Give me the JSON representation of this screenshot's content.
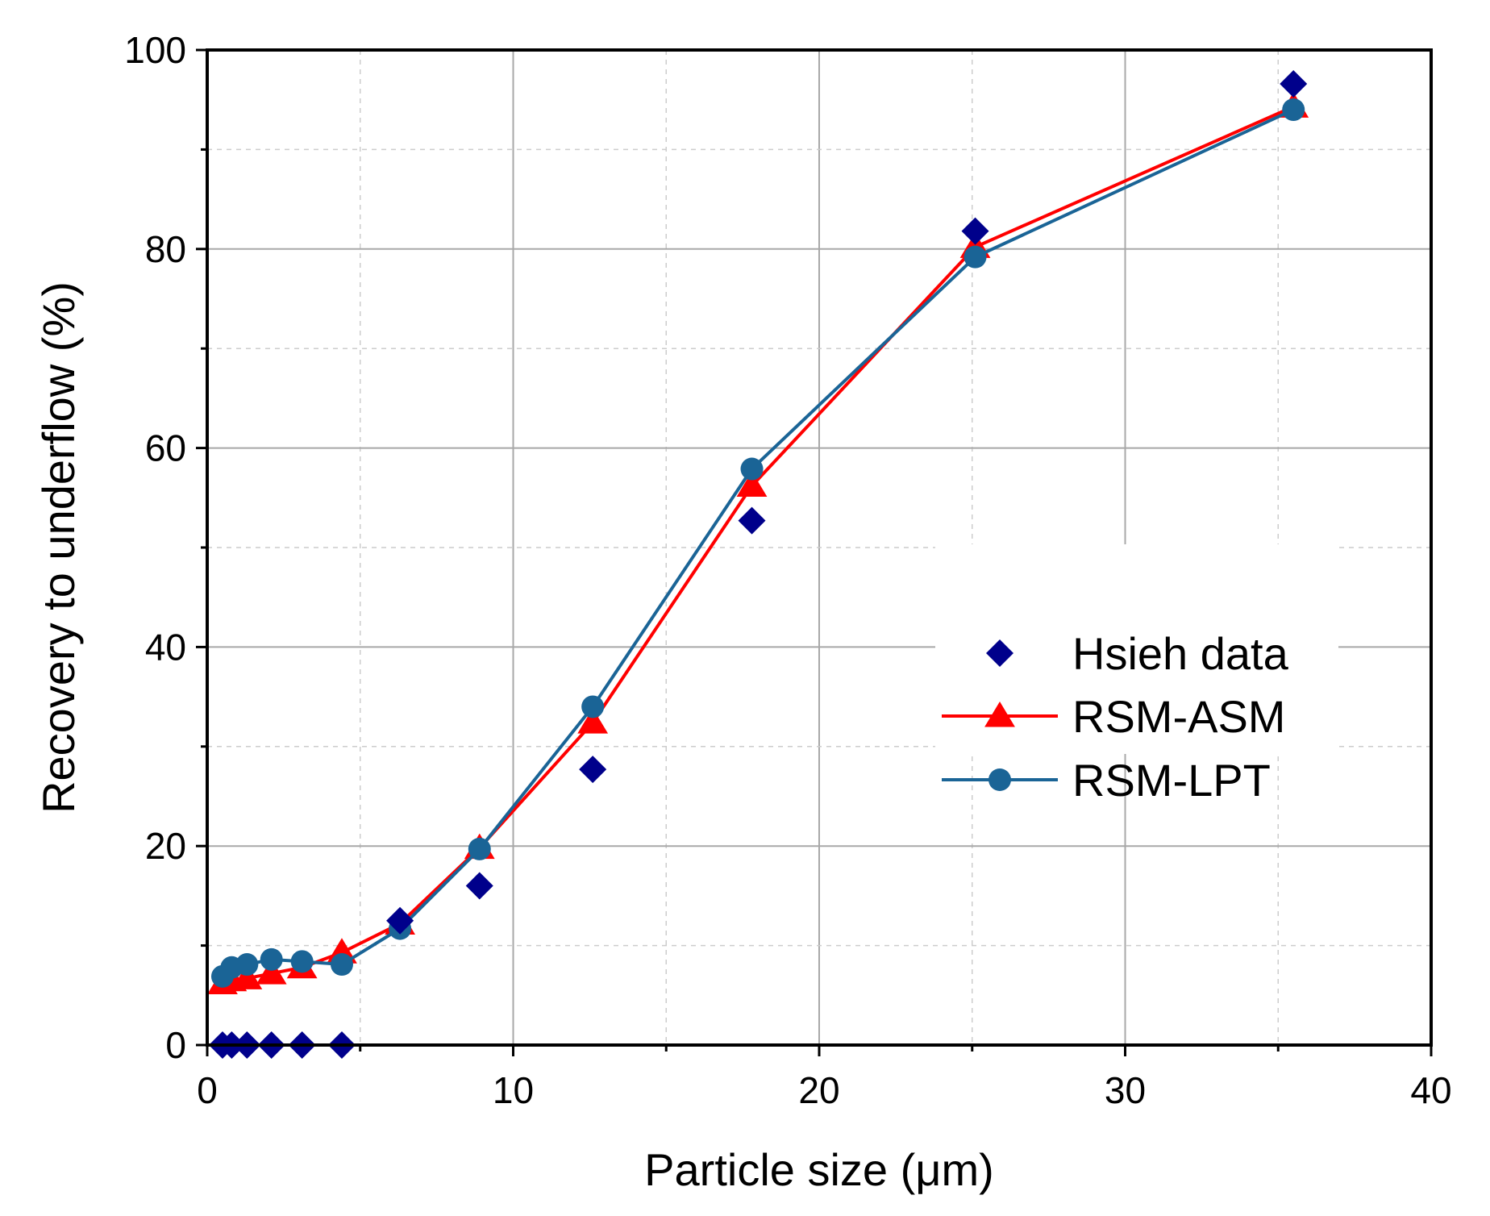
{
  "chart_data": {
    "type": "line",
    "title": "",
    "xlabel": "Particle size (μm)",
    "ylabel": "Recovery to underflow (%)",
    "xlim": [
      0,
      40
    ],
    "ylim": [
      0,
      100
    ],
    "x_ticks": [
      0,
      10,
      20,
      30,
      40
    ],
    "x_tick_labels": [
      "0",
      "10",
      "20",
      "30",
      "40"
    ],
    "y_ticks": [
      0,
      20,
      40,
      60,
      80,
      100
    ],
    "y_tick_labels": [
      "0",
      "20",
      "40",
      "60",
      "80",
      "100"
    ],
    "grid": true,
    "legend_position": "center-right",
    "series": [
      {
        "name": "Hsieh data",
        "marker": "diamond",
        "line": false,
        "color": "#00008B",
        "x": [
          0.5,
          0.8,
          1.3,
          2.1,
          3.1,
          4.4,
          6.3,
          8.9,
          12.6,
          17.8,
          25.1,
          35.5
        ],
        "y": [
          0,
          0,
          0,
          0,
          0,
          0,
          12.5,
          16.0,
          27.7,
          52.7,
          81.8,
          96.6
        ]
      },
      {
        "name": "RSM-ASM",
        "marker": "triangle",
        "line": true,
        "color": "#FF0000",
        "x": [
          0.5,
          0.8,
          1.3,
          2.1,
          3.1,
          4.4,
          6.3,
          8.9,
          12.6,
          17.8,
          25.1,
          35.5
        ],
        "y": [
          6.2,
          6.5,
          6.7,
          7.2,
          7.8,
          9.3,
          12.2,
          19.8,
          32.4,
          56.2,
          80.2,
          94.3
        ]
      },
      {
        "name": "RSM-LPT",
        "marker": "circle",
        "line": true,
        "color": "#1A6496",
        "x": [
          0.5,
          0.8,
          1.3,
          2.1,
          3.1,
          4.4,
          6.3,
          8.9,
          12.6,
          17.8,
          25.1,
          35.5
        ],
        "y": [
          6.9,
          7.8,
          8.1,
          8.6,
          8.4,
          8.1,
          11.7,
          19.7,
          34.0,
          57.9,
          79.2,
          94.0
        ]
      }
    ]
  }
}
